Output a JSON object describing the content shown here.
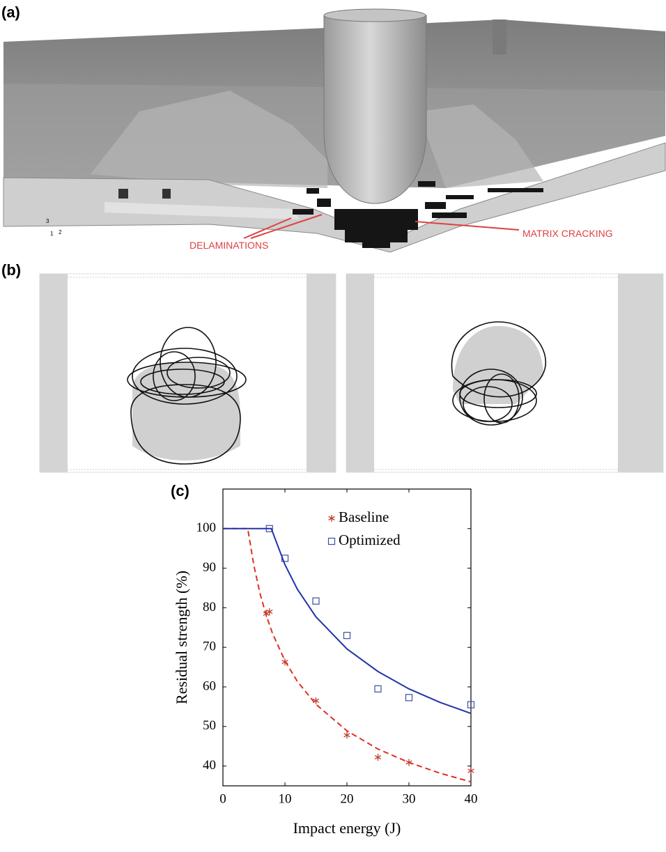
{
  "panels": {
    "a": {
      "label": "(a)",
      "annotations": [
        "DELAMINATIONS",
        "MATRIX CRACKING"
      ],
      "triad": [
        "3",
        "1",
        "2"
      ]
    },
    "b": {
      "label": "(b)"
    }
  },
  "chart_data": {
    "type": "scatter",
    "panel_label": "(c)",
    "x_label": "Impact energy (J)",
    "y_label": "Residual strength (%)",
    "xlim": [
      0,
      40
    ],
    "xticks": [
      0,
      10,
      20,
      30,
      40
    ],
    "ylim": [
      35,
      110
    ],
    "yticks": [
      40,
      50,
      60,
      70,
      80,
      90,
      100
    ],
    "legend": "upper right",
    "series": [
      {
        "name": "Baseline",
        "color": "#c0392b",
        "style": "markers",
        "marker": "asterisk",
        "x": [
          7,
          7.5,
          10,
          15,
          20,
          25,
          30,
          40
        ],
        "values": [
          78.5,
          79,
          66.3,
          56.5,
          47.8,
          42.2,
          40.9,
          38.8
        ]
      },
      {
        "name": "Optimized",
        "color": "#3a4fa0",
        "style": "markers",
        "marker": "square",
        "x": [
          7.5,
          10,
          15,
          20,
          25,
          30,
          40
        ],
        "values": [
          100,
          92.5,
          81.7,
          73,
          59.5,
          57.3,
          55.5
        ]
      },
      {
        "color": "#e03020",
        "style": "line",
        "dash": true,
        "x": [
          0,
          4,
          5,
          6,
          7,
          8,
          10,
          12,
          15,
          20,
          25,
          30,
          35,
          40
        ],
        "values": [
          100,
          100,
          90.6,
          83.5,
          78,
          73.5,
          66.6,
          61.4,
          55.6,
          48.9,
          44.3,
          40.9,
          38.2,
          36
        ]
      },
      {
        "color": "#2233aa",
        "style": "line",
        "dash": false,
        "x": [
          0,
          7.8,
          10,
          12,
          15,
          20,
          25,
          30,
          35,
          40
        ],
        "values": [
          100,
          100,
          90.9,
          84.7,
          77.7,
          69.6,
          63.9,
          59.5,
          56.1,
          53.3
        ]
      }
    ]
  }
}
